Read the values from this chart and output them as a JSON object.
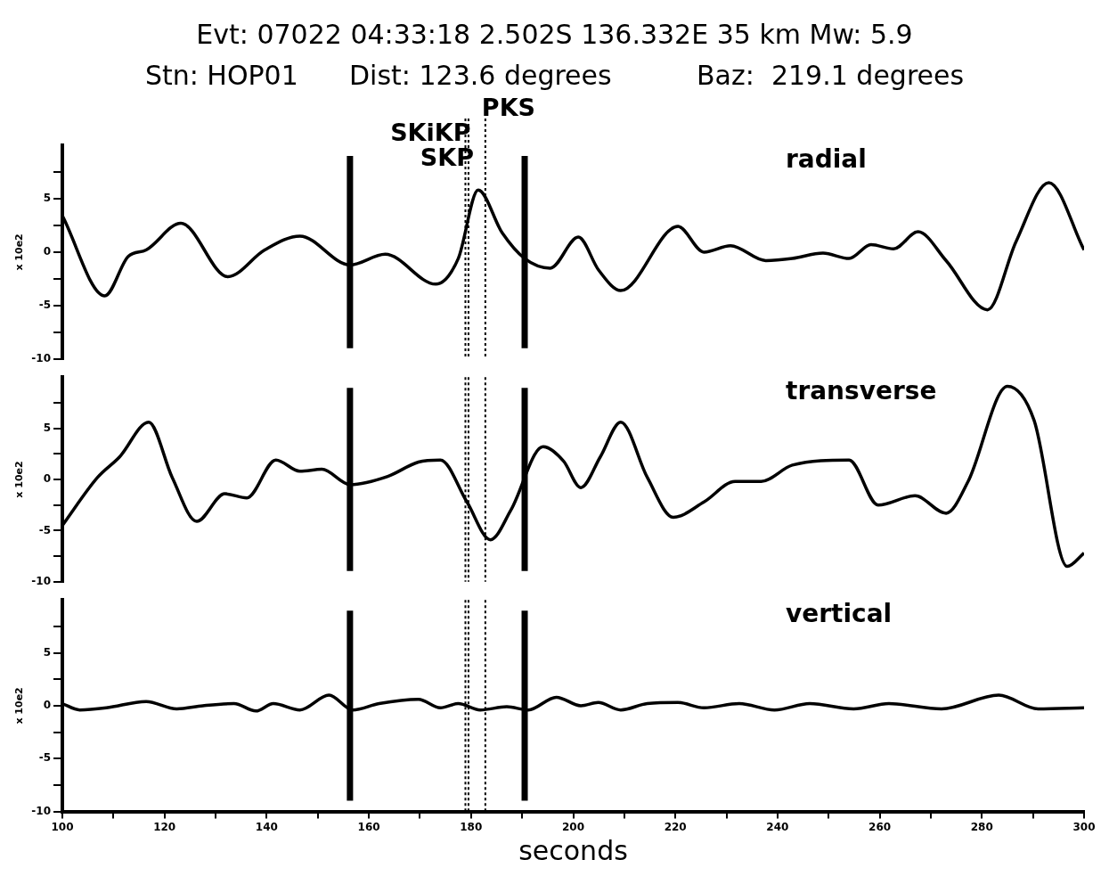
{
  "chart_data": [
    {
      "type": "line",
      "title": "Evt: 07022 04:33:18    2.502S    136.332E    35 km    Mw: 5.9",
      "subtitle": "Stn: HOP01      Dist: 123.6 degrees          Baz:  219.1 degrees",
      "ylabel": "x 10e2",
      "xlim": [
        100,
        300
      ],
      "xticks": [
        100,
        120,
        140,
        160,
        180,
        200,
        220,
        240,
        260,
        280,
        300
      ],
      "ylim": [
        -10,
        10
      ],
      "yticks": [
        -10,
        {
          "value": -7.5,
          "label": null
        },
        -5,
        {
          "value": -2.5,
          "label": null
        },
        0,
        {
          "value": 2.5,
          "label": null
        },
        5,
        {
          "value": 7.5,
          "label": null
        }
      ],
      "tick_labels": "y",
      "grid": false,
      "marker": "none",
      "line_style": "solid",
      "series": [
        {
          "name": "radial",
          "color": "#000000",
          "x": [
            100,
            108.3,
            112.9,
            116.4,
            123.2,
            132.4,
            139.6,
            146.5,
            156.3,
            163.2,
            173.1,
            177.5,
            181.4,
            186.1,
            190.5,
            195.5,
            201,
            205,
            209.3,
            220.5,
            225.6,
            230.8,
            237.7,
            242.9,
            248.9,
            254,
            258.3,
            262.7,
            267.5,
            273,
            281.1,
            286.7,
            293.1,
            300
          ],
          "values": [
            3.4,
            -4.1,
            -0.4,
            0.2,
            2.7,
            -2.3,
            0.2,
            1.5,
            -1.2,
            -0.2,
            -3.0,
            -0.6,
            5.8,
            1.8,
            -0.6,
            -1.5,
            1.4,
            -1.7,
            -3.6,
            2.4,
            0,
            0.6,
            -0.8,
            -0.6,
            -0.1,
            -0.6,
            0.7,
            0.3,
            1.9,
            -0.8,
            -5.4,
            1.0,
            6.5,
            0.2
          ]
        }
      ],
      "ref_lines": [
        {
          "axis": "x",
          "value": 156.3,
          "color": "#000000",
          "line_style": "solid"
        },
        {
          "axis": "x",
          "value": 178.9,
          "label": "SKiKP",
          "color": "#000000",
          "line_style": "dotted"
        },
        {
          "axis": "x",
          "value": 179.5,
          "label": "SKP",
          "color": "#000000",
          "line_style": "dotted"
        },
        {
          "axis": "x",
          "value": 182.8,
          "label": "PKS",
          "color": "#000000",
          "line_style": "dotted"
        },
        {
          "axis": "x",
          "value": 190.5,
          "color": "#000000",
          "line_style": "solid"
        }
      ]
    },
    {
      "type": "line",
      "ylabel": "x 10e2",
      "xlim": [
        100,
        300
      ],
      "xticks": [
        100,
        120,
        140,
        160,
        180,
        200,
        220,
        240,
        260,
        280,
        300
      ],
      "ylim": [
        -10,
        10
      ],
      "yticks": [
        -10,
        {
          "value": -7.5,
          "label": null
        },
        -5,
        {
          "value": -2.5,
          "label": null
        },
        0,
        {
          "value": 2.5,
          "label": null
        },
        5,
        {
          "value": 7.5,
          "label": null
        }
      ],
      "tick_labels": "y",
      "grid": false,
      "marker": "none",
      "line_style": "solid",
      "series": [
        {
          "name": "transverse",
          "color": "#000000",
          "x": [
            100,
            106.9,
            111.2,
            116.9,
            121.5,
            126.3,
            131.8,
            136.1,
            141.8,
            146.5,
            150.8,
            156.3,
            163.7,
            169.7,
            174,
            179.2,
            183.8,
            187.8,
            194.1,
            198.1,
            201.5,
            205.3,
            209.3,
            214.5,
            219.6,
            225.6,
            231.7,
            236.8,
            242.9,
            254,
            259.7,
            266.9,
            273,
            277.3,
            285,
            290.2,
            296.7,
            300
          ],
          "values": [
            -4.5,
            0.2,
            2.2,
            5.6,
            0.2,
            -4.1,
            -1.4,
            -1.8,
            1.9,
            0.8,
            1.0,
            -0.5,
            0.3,
            1.7,
            1.9,
            -2.2,
            -5.9,
            -3.0,
            3.2,
            1.8,
            -0.8,
            2.2,
            5.6,
            0.2,
            -3.7,
            -2.2,
            -0.2,
            -0.2,
            1.4,
            1.9,
            -2.5,
            -1.6,
            -3.3,
            -0.2,
            9.1,
            5.8,
            -8.5,
            -7.2
          ]
        }
      ],
      "ref_lines": [
        {
          "axis": "x",
          "value": 156.3,
          "color": "#000000",
          "line_style": "solid"
        },
        {
          "axis": "x",
          "value": 178.9,
          "color": "#000000",
          "line_style": "dotted"
        },
        {
          "axis": "x",
          "value": 179.5,
          "color": "#000000",
          "line_style": "dotted"
        },
        {
          "axis": "x",
          "value": 182.8,
          "color": "#000000",
          "line_style": "dotted"
        },
        {
          "axis": "x",
          "value": 190.5,
          "color": "#000000",
          "line_style": "solid"
        }
      ]
    },
    {
      "type": "line",
      "xlabel": "seconds",
      "ylabel": "x 10e2",
      "xlim": [
        100,
        300
      ],
      "xticks": [
        100,
        {
          "value": 110,
          "label": null
        },
        120,
        {
          "value": 130,
          "label": null
        },
        140,
        {
          "value": 150,
          "label": null
        },
        160,
        {
          "value": 170,
          "label": null
        },
        180,
        {
          "value": 190,
          "label": null
        },
        200,
        {
          "value": 210,
          "label": null
        },
        220,
        {
          "value": 230,
          "label": null
        },
        240,
        {
          "value": 250,
          "label": null
        },
        260,
        {
          "value": 270,
          "label": null
        },
        280,
        {
          "value": 290,
          "label": null
        },
        300
      ],
      "ylim": [
        -10,
        10
      ],
      "yticks": [
        -10,
        {
          "value": -7.5,
          "label": null
        },
        -5,
        {
          "value": -2.5,
          "label": null
        },
        0,
        {
          "value": 2.5,
          "label": null
        },
        5,
        {
          "value": 7.5,
          "label": null
        }
      ],
      "grid": false,
      "marker": "none",
      "line_style": "solid",
      "series": [
        {
          "name": "vertical",
          "color": "#000000",
          "x": [
            100,
            103.4,
            108.6,
            116.4,
            122.4,
            127.5,
            133.6,
            137.9,
            141.3,
            146.5,
            152.2,
            156.8,
            162,
            169.7,
            174,
            177.5,
            181.8,
            187,
            191.2,
            196.7,
            201.5,
            204.9,
            209.3,
            214.5,
            220.5,
            225.6,
            232.5,
            239.4,
            246.3,
            254.9,
            261.8,
            272.1,
            283.3,
            291,
            300
          ],
          "values": [
            0.2,
            -0.4,
            -0.2,
            0.4,
            -0.3,
            0,
            0.2,
            -0.5,
            0.2,
            -0.4,
            1.0,
            -0.4,
            0.2,
            0.6,
            -0.2,
            0.2,
            -0.4,
            -0.1,
            -0.4,
            0.8,
            0,
            0.3,
            -0.4,
            0.2,
            0.3,
            -0.2,
            0.2,
            -0.4,
            0.2,
            -0.3,
            0.2,
            -0.3,
            1.0,
            -0.3,
            -0.2
          ]
        }
      ],
      "ref_lines": [
        {
          "axis": "x",
          "value": 156.3,
          "color": "#000000",
          "line_style": "solid"
        },
        {
          "axis": "x",
          "value": 178.9,
          "color": "#000000",
          "line_style": "dotted"
        },
        {
          "axis": "x",
          "value": 179.5,
          "color": "#000000",
          "line_style": "dotted"
        },
        {
          "axis": "x",
          "value": 182.8,
          "color": "#000000",
          "line_style": "dotted"
        },
        {
          "axis": "x",
          "value": 190.5,
          "color": "#000000",
          "line_style": "solid"
        }
      ]
    }
  ]
}
